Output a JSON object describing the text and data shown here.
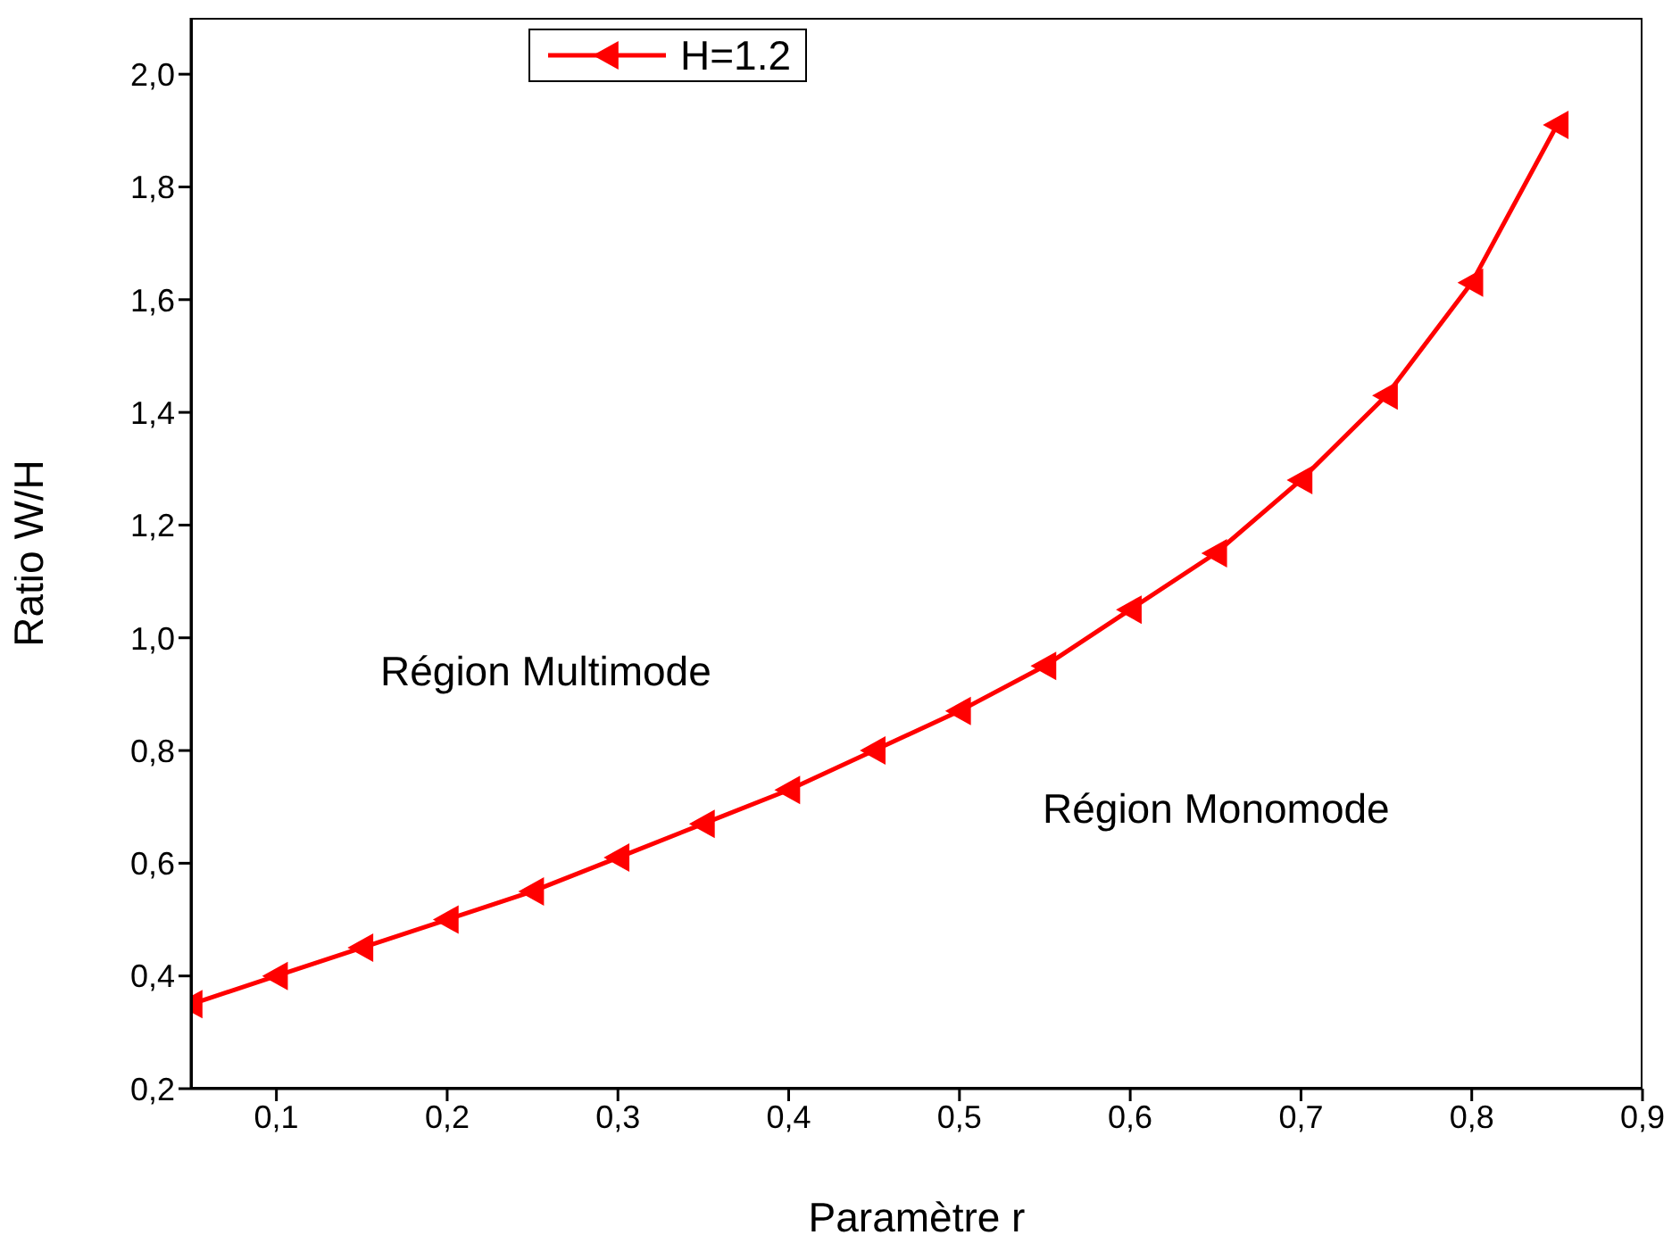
{
  "chart_data": {
    "type": "line",
    "xlabel": "Paramètre r",
    "ylabel": "Ratio W/H",
    "x": [
      0.05,
      0.1,
      0.15,
      0.2,
      0.25,
      0.3,
      0.35,
      0.4,
      0.45,
      0.5,
      0.55,
      0.6,
      0.65,
      0.7,
      0.75,
      0.8,
      0.85
    ],
    "series": [
      {
        "name": "H=1.2",
        "color": "#ff0000",
        "values": [
          0.35,
          0.4,
          0.45,
          0.5,
          0.55,
          0.61,
          0.67,
          0.73,
          0.8,
          0.87,
          0.95,
          1.05,
          1.15,
          1.28,
          1.43,
          1.63,
          1.91
        ]
      }
    ],
    "xlim": [
      0.05,
      0.9
    ],
    "ylim": [
      0.2,
      2.1
    ],
    "xticks": [
      {
        "value": 0.1,
        "label": "0,1"
      },
      {
        "value": 0.2,
        "label": "0,2"
      },
      {
        "value": 0.3,
        "label": "0,3"
      },
      {
        "value": 0.4,
        "label": "0,4"
      },
      {
        "value": 0.5,
        "label": "0,5"
      },
      {
        "value": 0.6,
        "label": "0,6"
      },
      {
        "value": 0.7,
        "label": "0,7"
      },
      {
        "value": 0.8,
        "label": "0,8"
      },
      {
        "value": 0.9,
        "label": "0,9"
      }
    ],
    "yticks": [
      {
        "value": 0.2,
        "label": "0,2"
      },
      {
        "value": 0.4,
        "label": "0,4"
      },
      {
        "value": 0.6,
        "label": "0,6"
      },
      {
        "value": 0.8,
        "label": "0,8"
      },
      {
        "value": 1.0,
        "label": "1,0"
      },
      {
        "value": 1.2,
        "label": "1,2"
      },
      {
        "value": 1.4,
        "label": "1,4"
      },
      {
        "value": 1.6,
        "label": "1,6"
      },
      {
        "value": 1.8,
        "label": "1,8"
      },
      {
        "value": 2.0,
        "label": "2,0"
      }
    ],
    "annotations": [
      "Région Multimode",
      "Région Monomode"
    ],
    "legend": "top",
    "marker": "triangle",
    "line_style": "solid",
    "grid": false
  }
}
